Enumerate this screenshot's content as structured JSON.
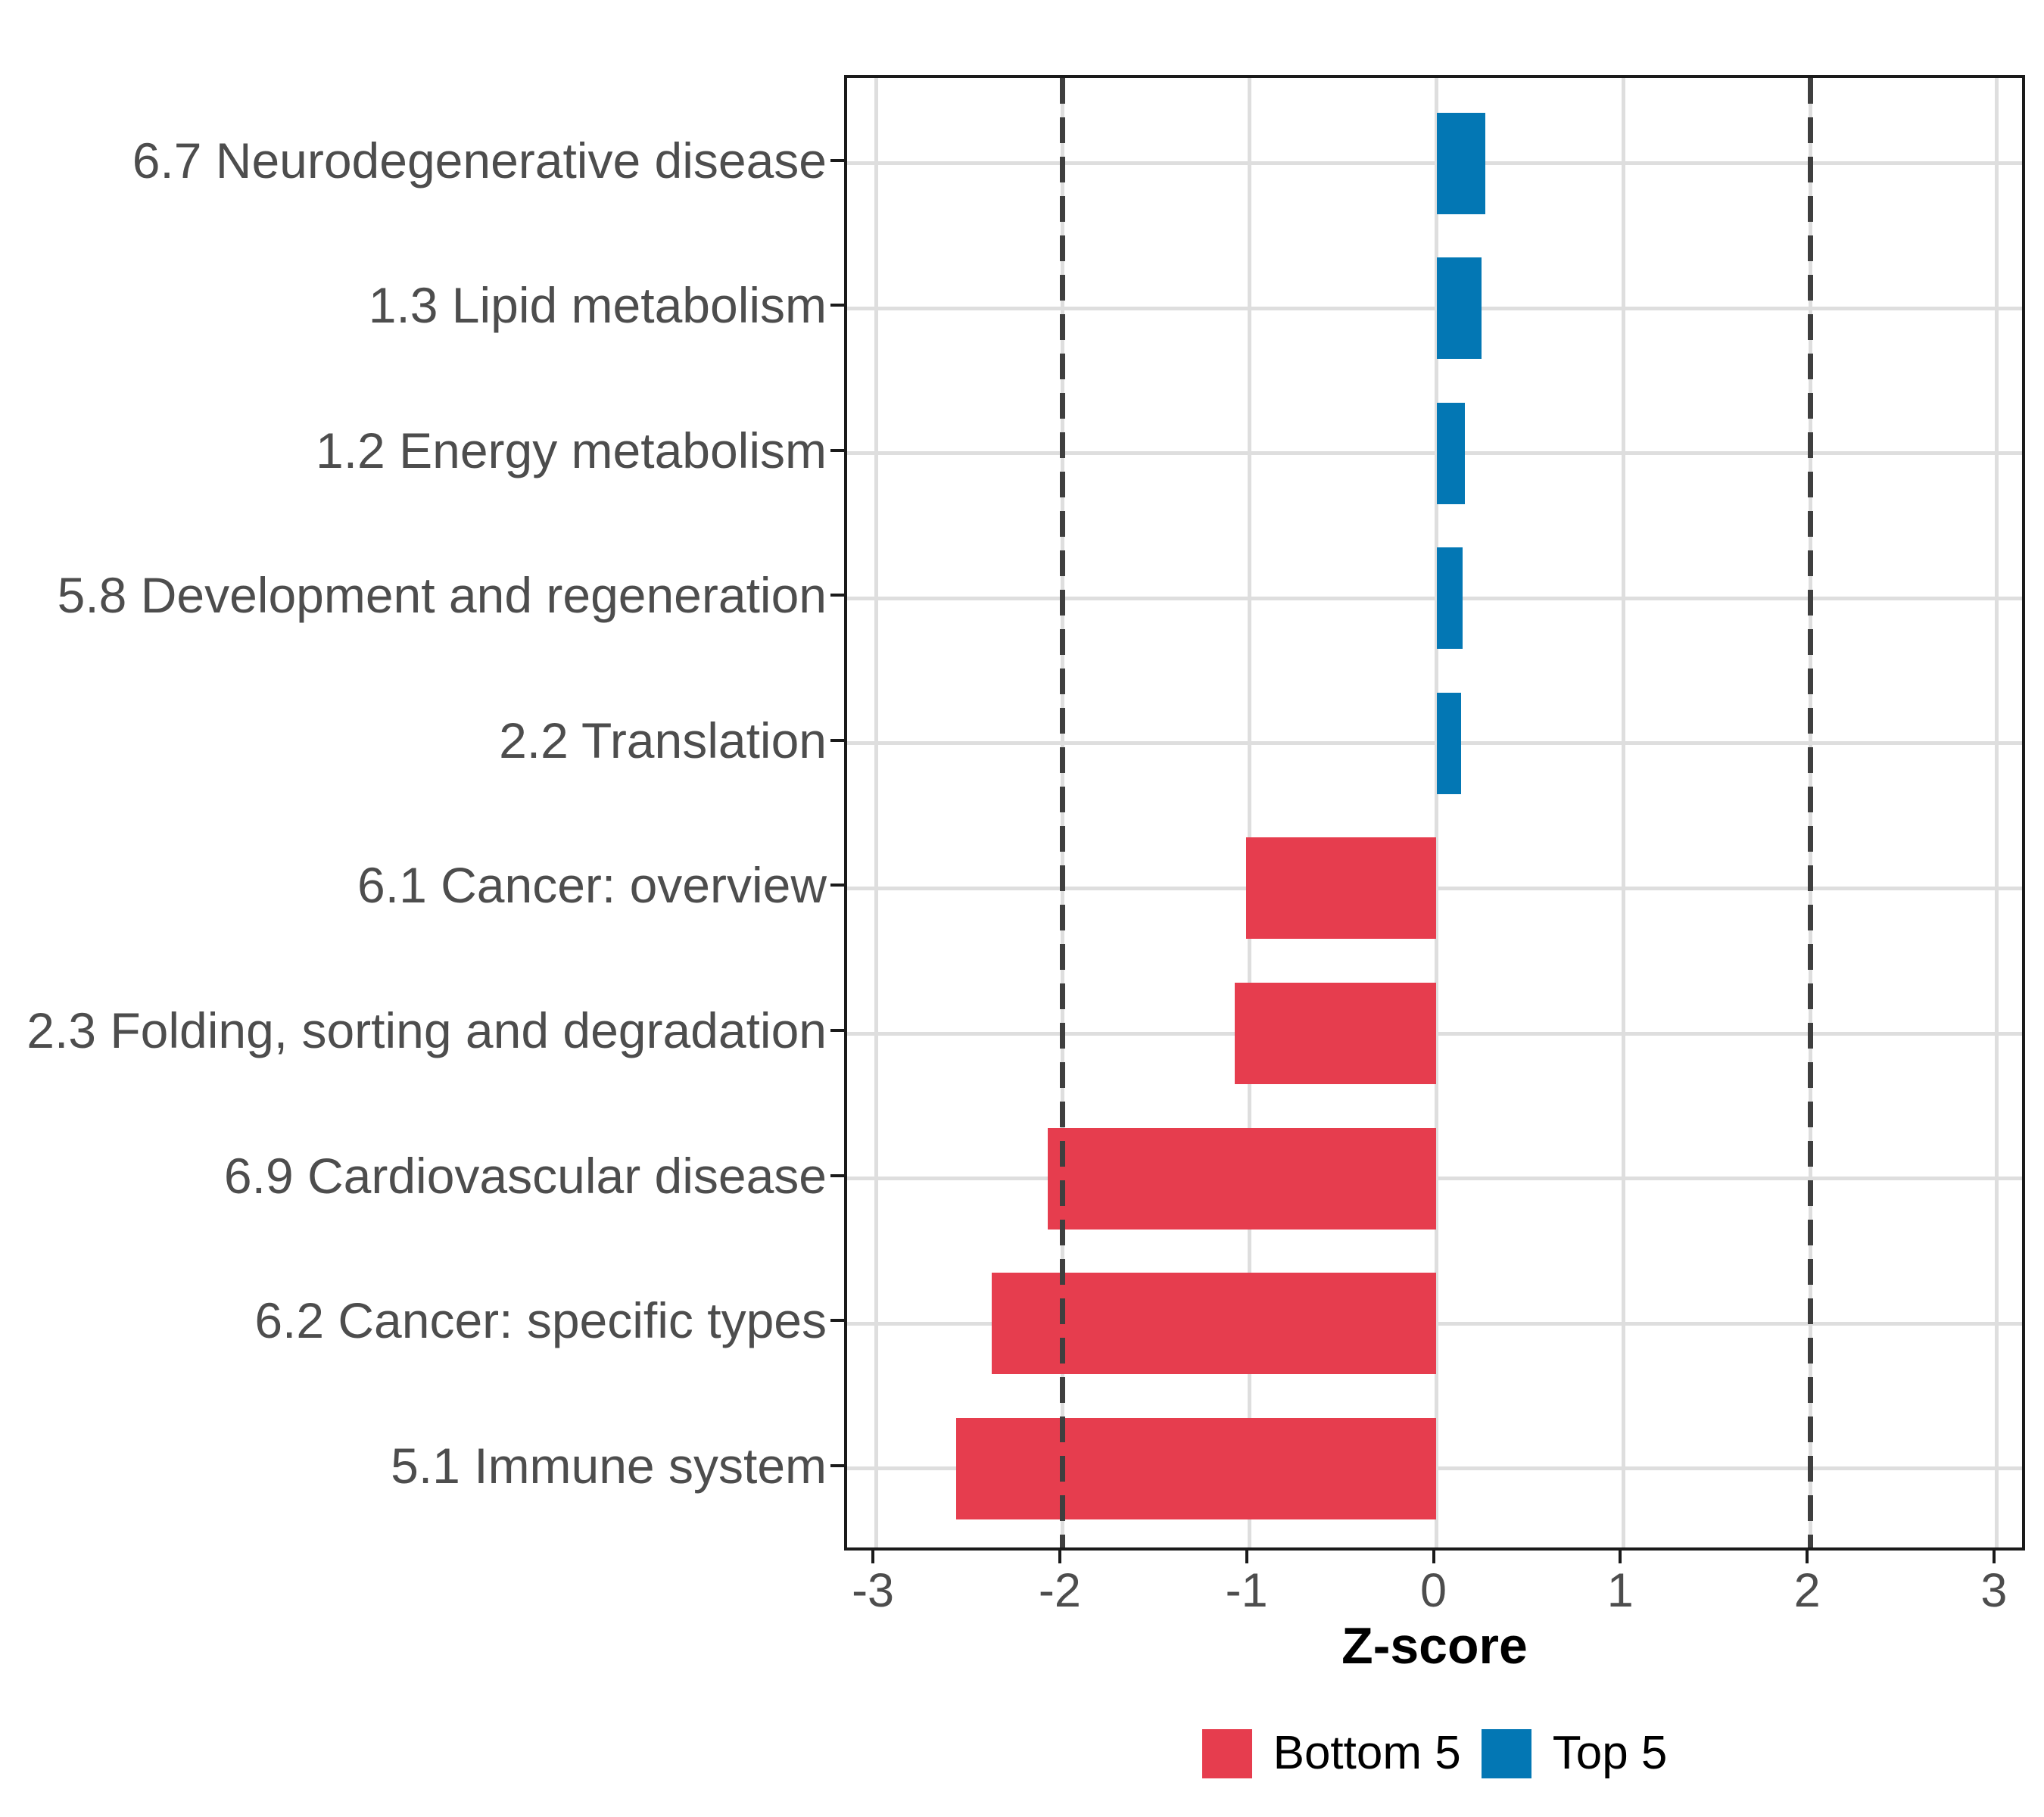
{
  "chart_data": {
    "type": "bar",
    "orientation": "horizontal",
    "title": "",
    "xlabel": "Z-score",
    "ylabel": "",
    "categories": [
      "6.7 Neurodegenerative disease",
      "1.3 Lipid metabolism",
      "1.2 Energy metabolism",
      "5.8 Development and regeneration",
      "2.2 Translation",
      "6.1 Cancer: overview",
      "2.3 Folding, sorting and degradation",
      "6.9 Cardiovascular disease",
      "6.2 Cancer: specific types",
      "5.1 Immune system"
    ],
    "values": [
      0.26,
      0.24,
      0.15,
      0.14,
      0.13,
      -1.02,
      -1.08,
      -2.08,
      -2.38,
      -2.57
    ],
    "groups": [
      "Top 5",
      "Top 5",
      "Top 5",
      "Top 5",
      "Top 5",
      "Bottom 5",
      "Bottom 5",
      "Bottom 5",
      "Bottom 5",
      "Bottom 5"
    ],
    "group_colors": {
      "Bottom 5": "#E63D4E",
      "Top 5": "#0377B4"
    },
    "xlim": [
      -3.15,
      3.17
    ],
    "xticks": [
      {
        "value": -3,
        "label": "-3"
      },
      {
        "value": -2,
        "label": "-2"
      },
      {
        "value": -1,
        "label": "-1"
      },
      {
        "value": 0,
        "label": "0"
      },
      {
        "value": 1,
        "label": "1"
      },
      {
        "value": 2,
        "label": "2"
      },
      {
        "value": 3,
        "label": "3"
      }
    ],
    "reference_lines": [
      -2,
      2
    ],
    "grid": "major-only",
    "legend": {
      "position": "bottom",
      "items": [
        {
          "label": "Bottom 5",
          "color": "#E63D4E"
        },
        {
          "label": "Top 5",
          "color": "#0377B4"
        }
      ]
    }
  },
  "style_colors": {
    "gridline": "#dedede",
    "reference_line": "#3f3f3f",
    "axis_text": "#4d4d4d",
    "panel_border": "#1a1a1a",
    "background": "#ffffff"
  }
}
